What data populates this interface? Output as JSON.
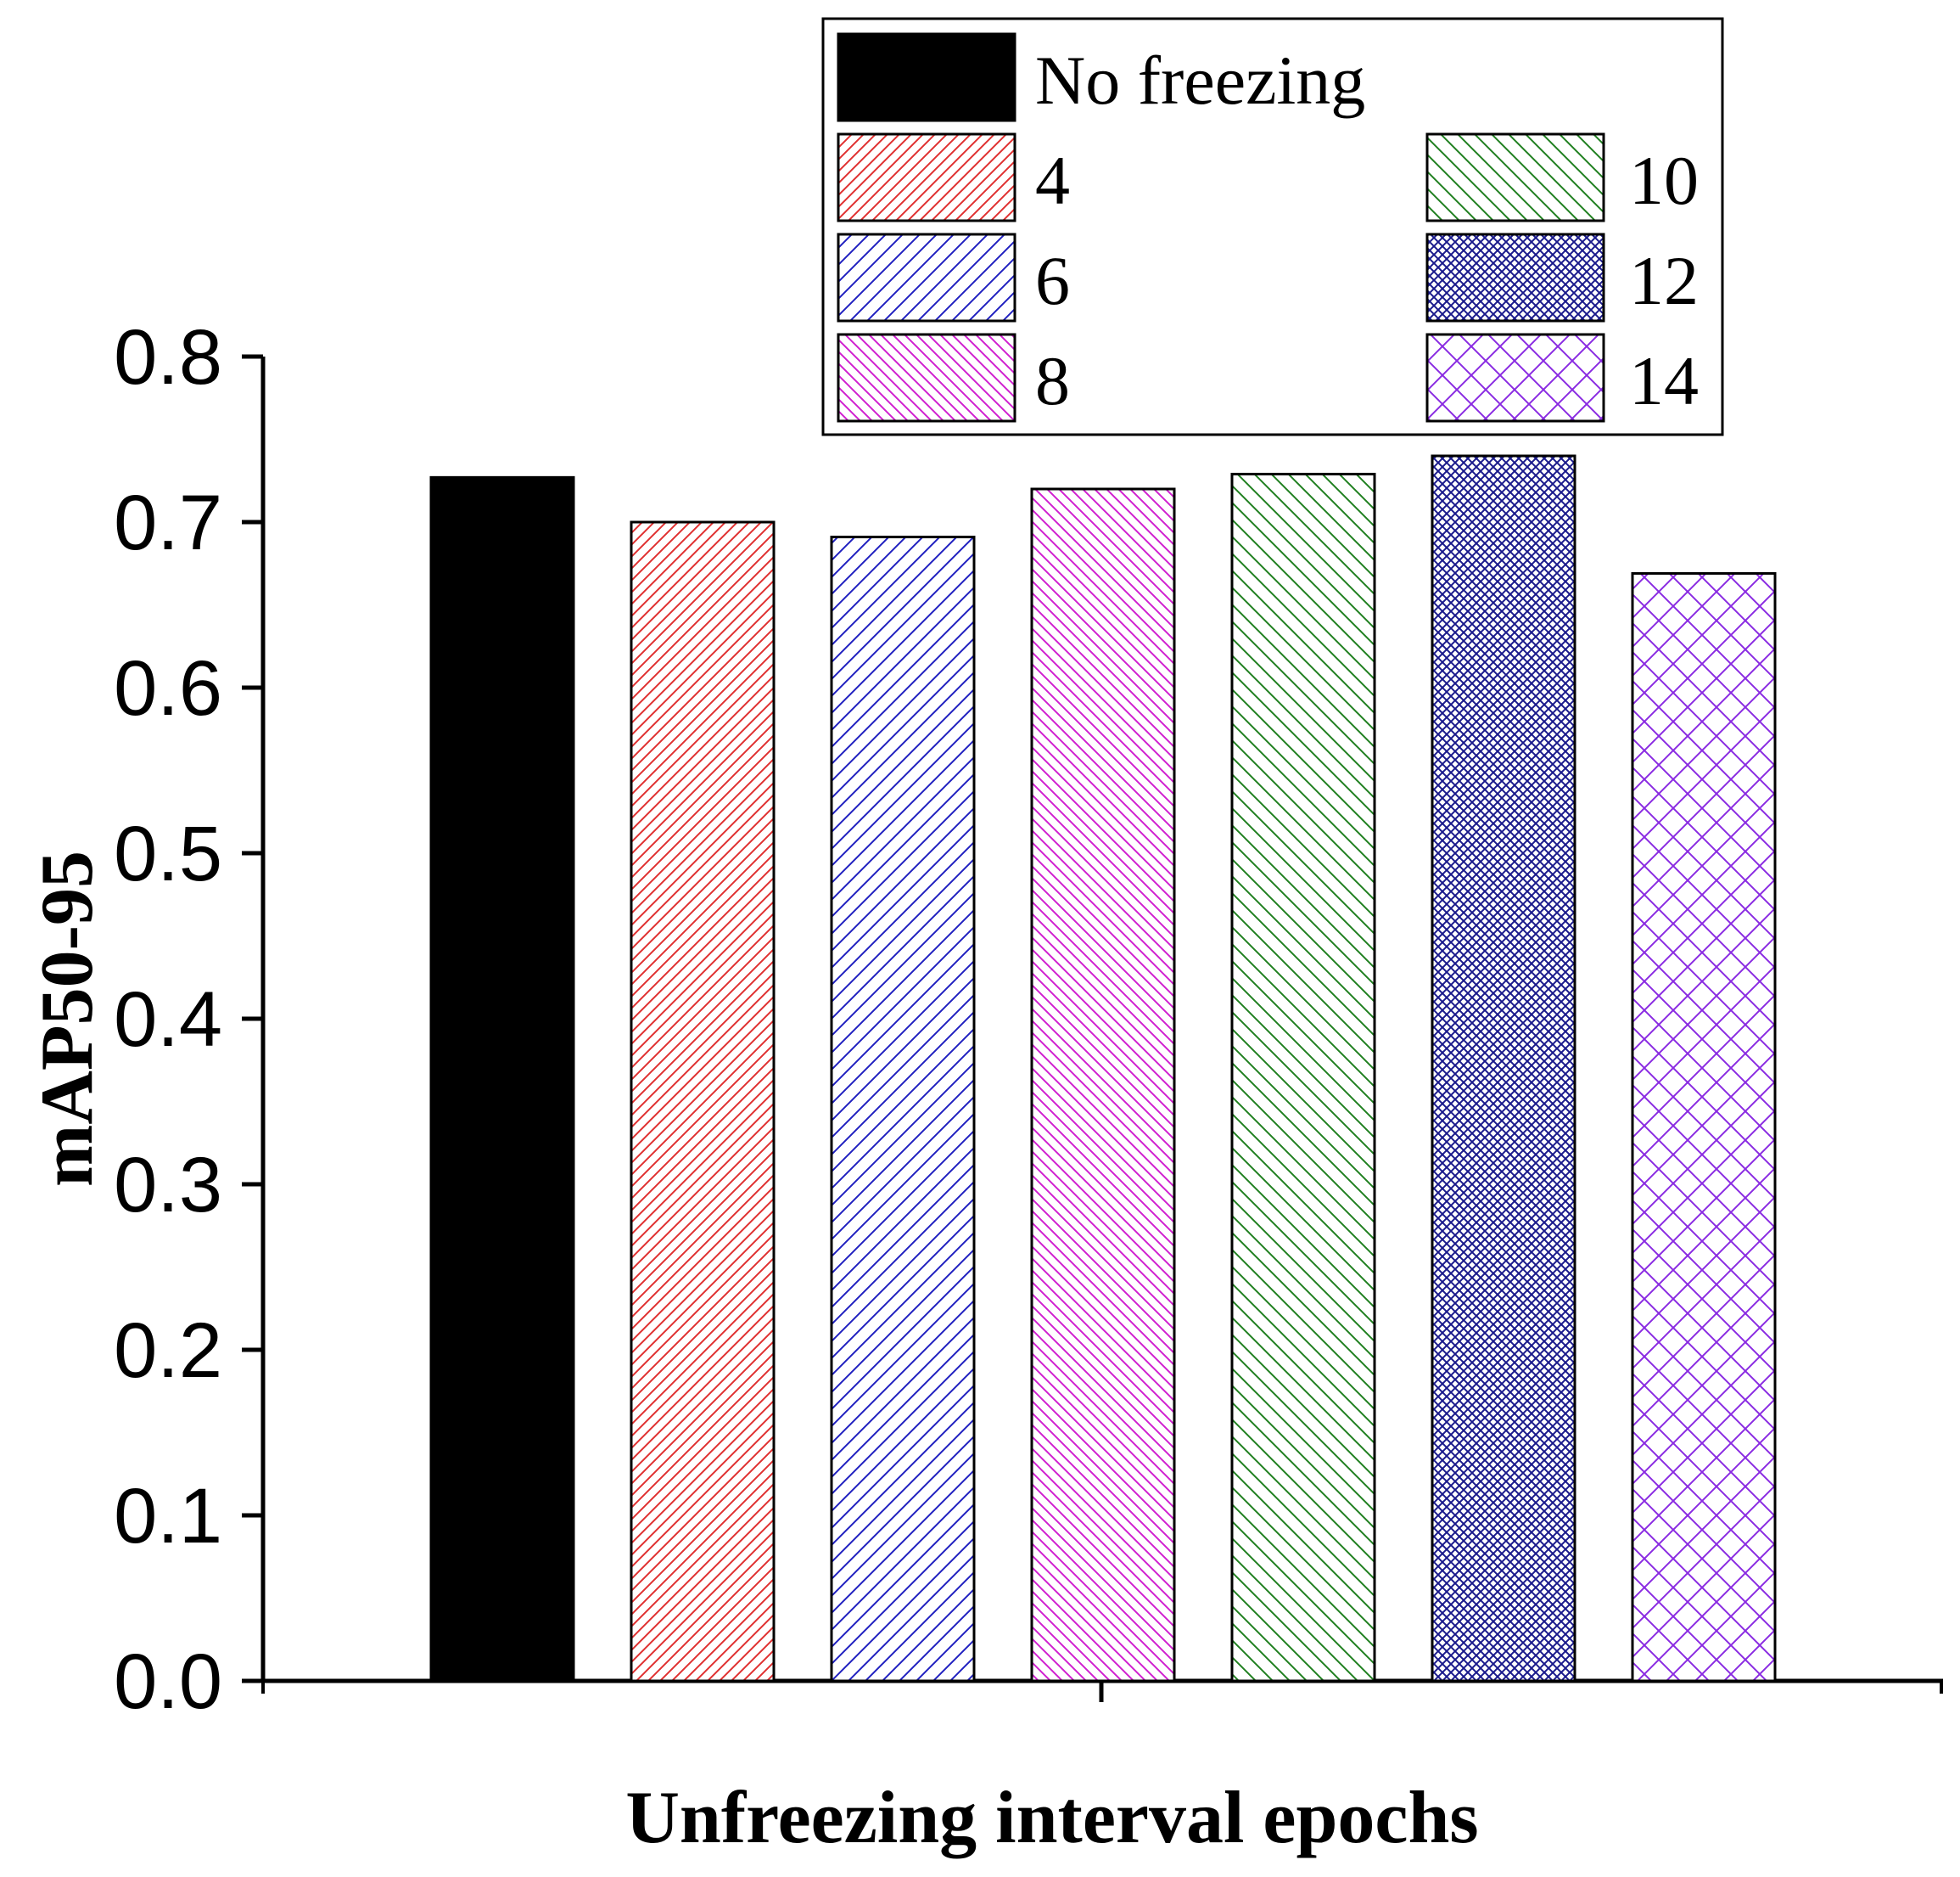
{
  "chart_data": {
    "type": "bar",
    "title": "",
    "xlabel": "Unfreezing interval epochs",
    "ylabel": "mAP50-95",
    "ylim": [
      0,
      0.8
    ],
    "yticks": [
      "0.0",
      "0.1",
      "0.2",
      "0.3",
      "0.4",
      "0.5",
      "0.6",
      "0.7",
      "0.8"
    ],
    "grid": false,
    "legend_position": "top-right",
    "series": [
      {
        "name": "No freezing",
        "value": 0.727,
        "color": "#000000",
        "pattern": "solid"
      },
      {
        "name": "4",
        "value": 0.7,
        "color": "#e03030",
        "pattern": "dense-diagonal-up"
      },
      {
        "name": "6",
        "value": 0.691,
        "color": "#2020c0",
        "pattern": "diagonal-up"
      },
      {
        "name": "8",
        "value": 0.72,
        "color": "#d020d0",
        "pattern": "dense-diagonal-down"
      },
      {
        "name": "10",
        "value": 0.729,
        "color": "#208020",
        "pattern": "diagonal-down"
      },
      {
        "name": "12",
        "value": 0.74,
        "color": "#1a1a8c",
        "pattern": "fine-crosshatch"
      },
      {
        "name": "14",
        "value": 0.669,
        "color": "#8a2be2",
        "pattern": "crosshatch"
      }
    ]
  }
}
